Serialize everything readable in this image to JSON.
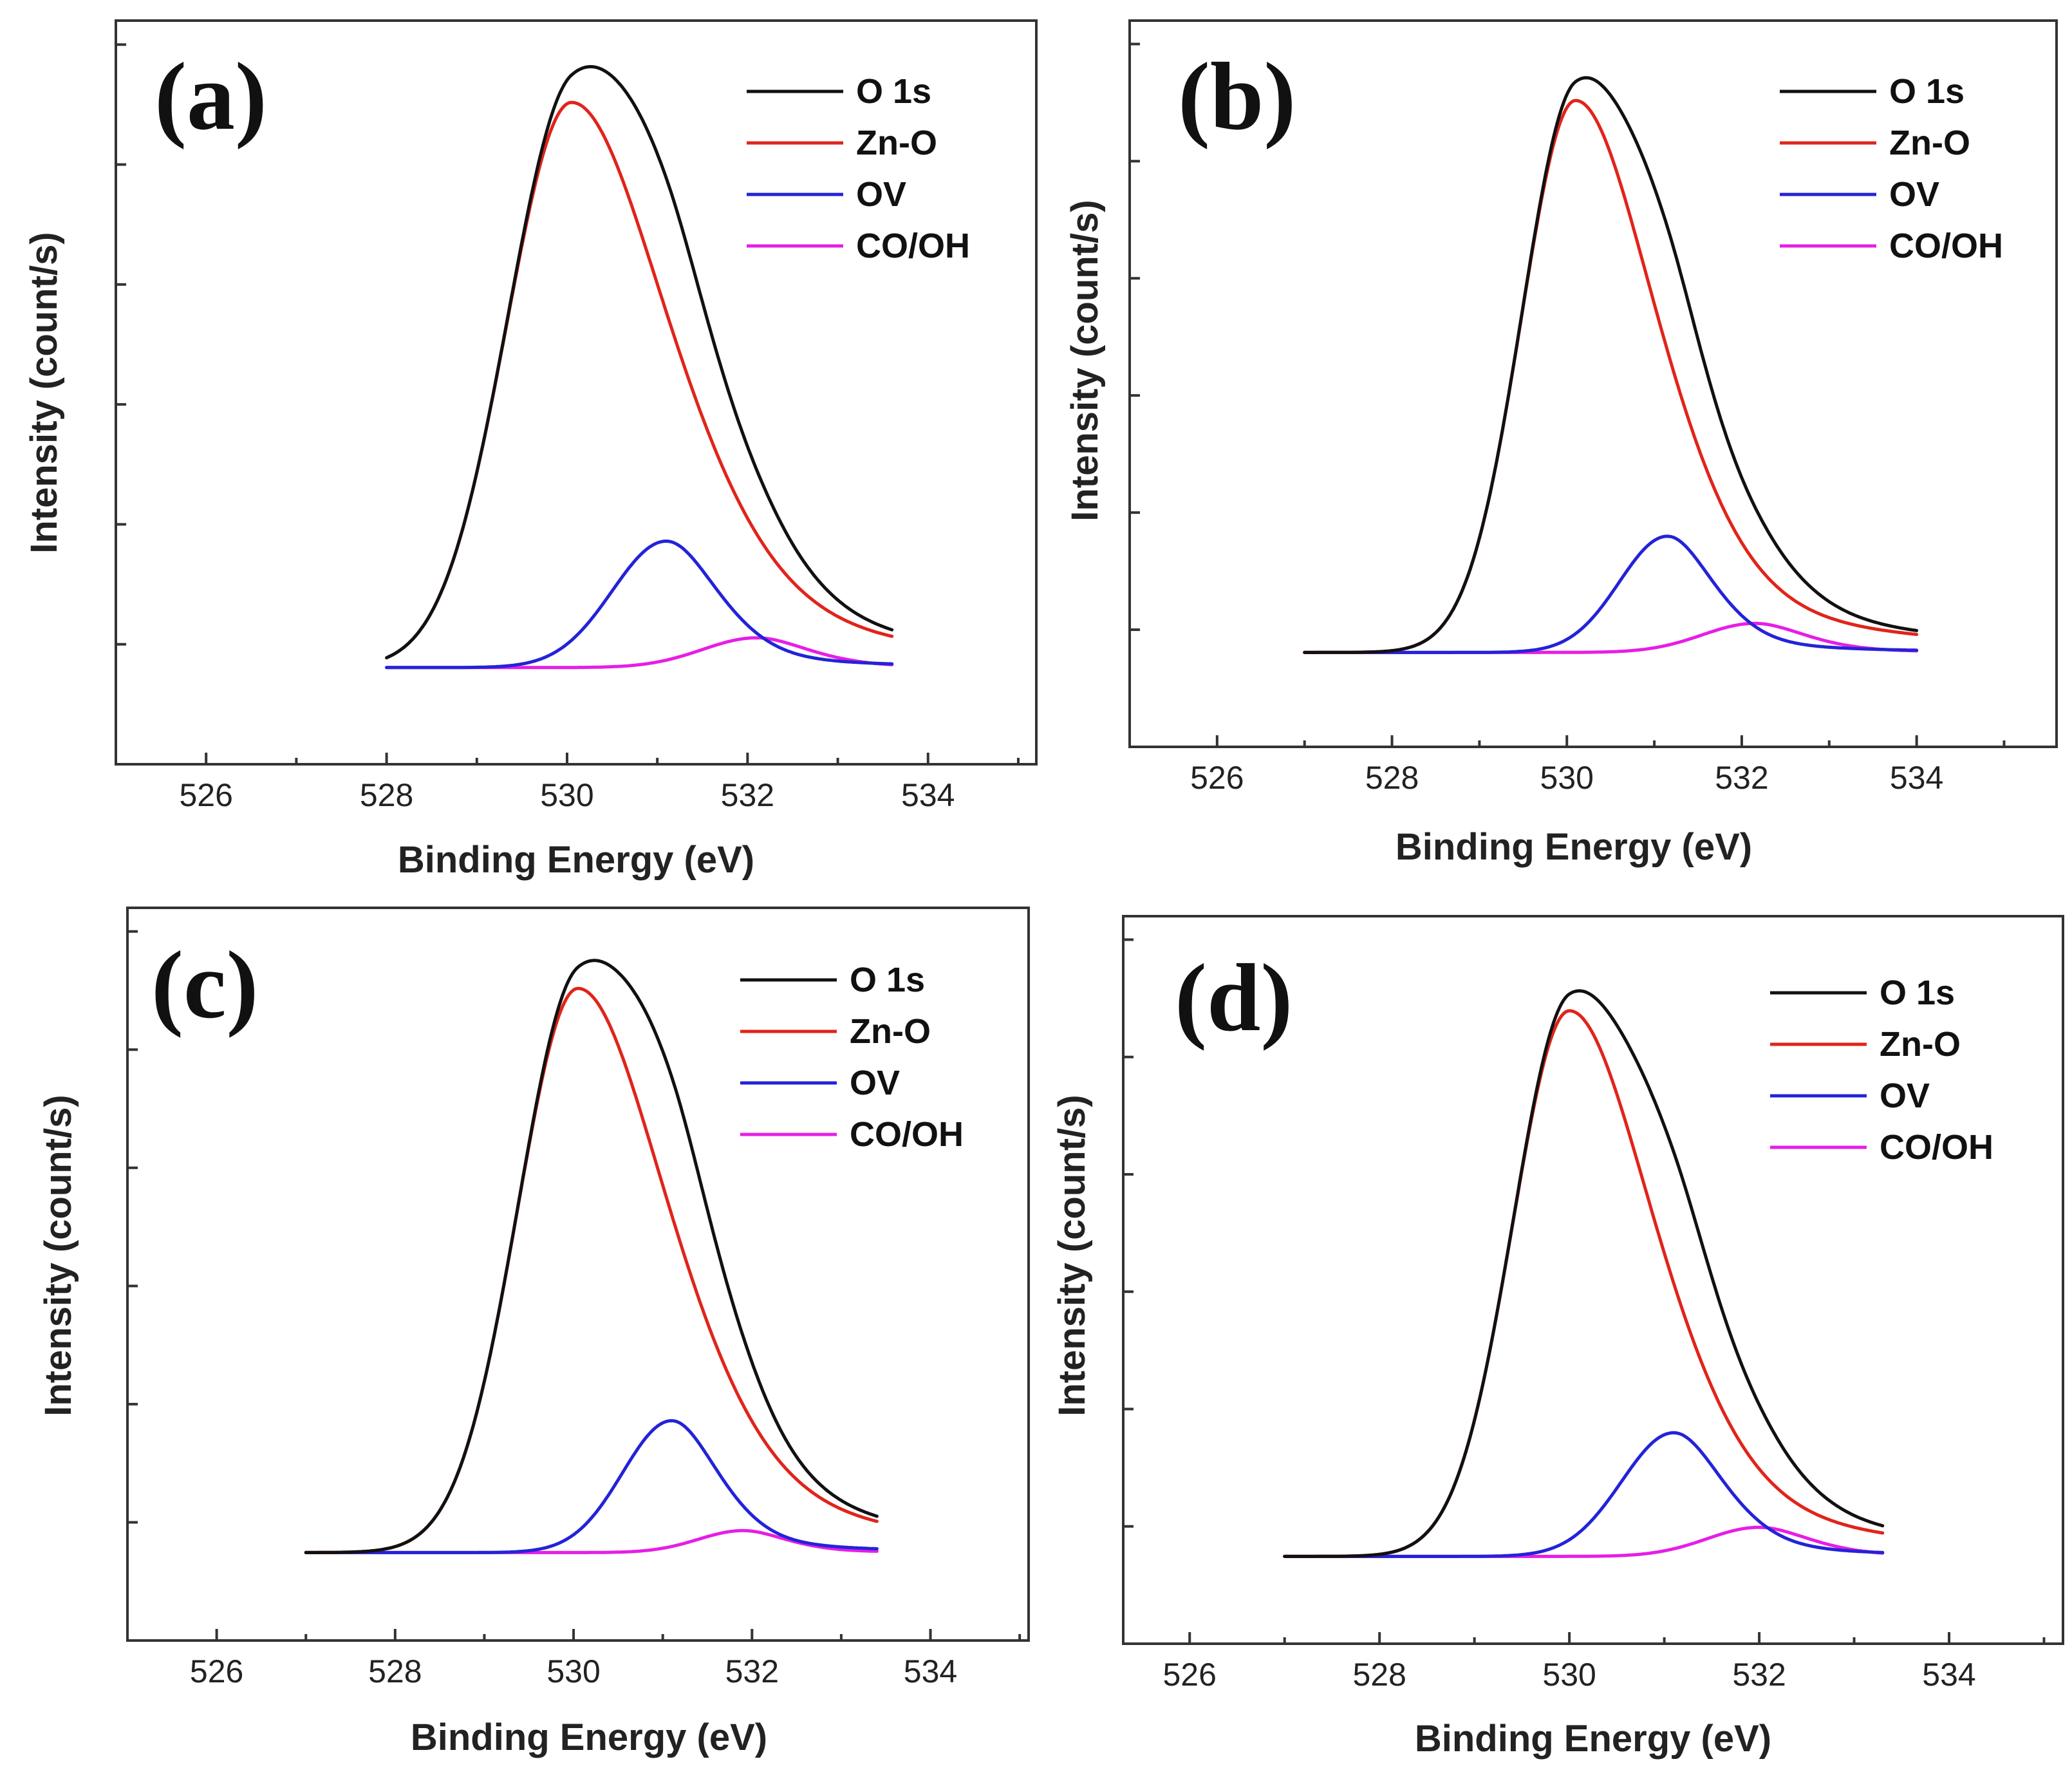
{
  "figure": {
    "series_styles": [
      {
        "name": "O 1s",
        "color": "#111111"
      },
      {
        "name": "Zn-O",
        "color": "#e0241b"
      },
      {
        "name": "OV",
        "color": "#2323d8"
      },
      {
        "name": "CO/OH",
        "color": "#e61ee6"
      }
    ]
  },
  "chart_data": [
    {
      "type": "line",
      "panel_label": "(a)",
      "xlabel": "Binding Energy (eV)",
      "ylabel": "Intensity (count/s)",
      "xlim": [
        525.0,
        535.2
      ],
      "ylim": [
        0,
        1
      ],
      "xticks": [
        526,
        528,
        530,
        532,
        534
      ],
      "x_range": [
        528.0,
        533.6
      ],
      "baseline": 0.13,
      "legend": {
        "position": "top-right",
        "entries": [
          "O 1s",
          "Zn-O",
          "OV",
          "CO/OH"
        ]
      },
      "components": [
        {
          "name": "Zn-O",
          "center": 530.05,
          "height": 0.76,
          "sigma": 0.72,
          "tail": 1.6
        },
        {
          "name": "OV",
          "center": 531.1,
          "height": 0.17,
          "sigma": 0.6,
          "tail": 1.0
        },
        {
          "name": "CO/OH",
          "center": 532.1,
          "height": 0.04,
          "sigma": 0.6,
          "tail": 1.0
        }
      ]
    },
    {
      "type": "line",
      "panel_label": "(b)",
      "xlabel": "Binding Energy (eV)",
      "ylabel": "Intensity (count/s)",
      "xlim": [
        525.0,
        535.6
      ],
      "ylim": [
        0,
        1
      ],
      "xticks": [
        526,
        528,
        530,
        532,
        534
      ],
      "x_range": [
        527.0,
        534.0
      ],
      "baseline": 0.13,
      "legend": {
        "position": "top-right",
        "entries": [
          "O 1s",
          "Zn-O",
          "OV",
          "CO/OH"
        ]
      },
      "components": [
        {
          "name": "Zn-O",
          "center": 530.1,
          "height": 0.76,
          "sigma": 0.62,
          "tail": 1.6
        },
        {
          "name": "OV",
          "center": 531.15,
          "height": 0.16,
          "sigma": 0.55,
          "tail": 1.0
        },
        {
          "name": "CO/OH",
          "center": 532.15,
          "height": 0.04,
          "sigma": 0.6,
          "tail": 1.0
        }
      ]
    },
    {
      "type": "line",
      "panel_label": "(c)",
      "xlabel": "Binding Energy (eV)",
      "ylabel": "Intensity (count/s)",
      "xlim": [
        525.0,
        535.1
      ],
      "ylim": [
        0,
        1
      ],
      "xticks": [
        526,
        528,
        530,
        532,
        534
      ],
      "x_range": [
        527.0,
        533.4
      ],
      "baseline": 0.12,
      "legend": {
        "position": "top-right",
        "entries": [
          "O 1s",
          "Zn-O",
          "OV",
          "CO/OH"
        ]
      },
      "components": [
        {
          "name": "Zn-O",
          "center": 530.05,
          "height": 0.77,
          "sigma": 0.68,
          "tail": 1.6
        },
        {
          "name": "OV",
          "center": 531.1,
          "height": 0.18,
          "sigma": 0.55,
          "tail": 1.0
        },
        {
          "name": "CO/OH",
          "center": 531.9,
          "height": 0.03,
          "sigma": 0.5,
          "tail": 1.0
        }
      ]
    },
    {
      "type": "line",
      "panel_label": "(d)",
      "xlabel": "Binding Energy (eV)",
      "ylabel": "Intensity (count/s)",
      "xlim": [
        525.3,
        535.2
      ],
      "ylim": [
        0,
        1
      ],
      "xticks": [
        526,
        528,
        530,
        532,
        534
      ],
      "x_range": [
        527.0,
        533.3
      ],
      "baseline": 0.12,
      "legend": {
        "position": "top-right",
        "entries": [
          "O 1s",
          "Zn-O",
          "OV",
          "CO/OH"
        ]
      },
      "components": [
        {
          "name": "Zn-O",
          "center": 530.0,
          "height": 0.75,
          "sigma": 0.6,
          "tail": 1.6
        },
        {
          "name": "OV",
          "center": 531.1,
          "height": 0.17,
          "sigma": 0.55,
          "tail": 1.0
        },
        {
          "name": "CO/OH",
          "center": 532.0,
          "height": 0.04,
          "sigma": 0.55,
          "tail": 1.0
        }
      ]
    }
  ]
}
